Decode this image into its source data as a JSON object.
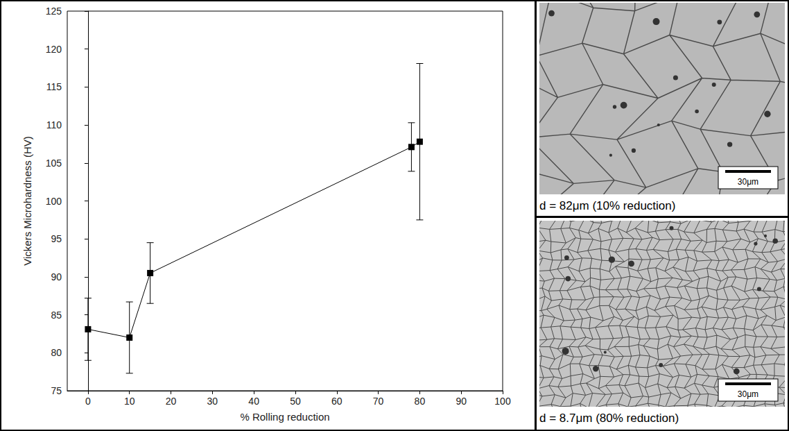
{
  "chart_data": {
    "type": "line",
    "x": [
      0,
      10,
      15,
      78,
      80
    ],
    "values": [
      83.1,
      82.0,
      90.5,
      107.1,
      107.8
    ],
    "errors": [
      4.1,
      4.7,
      4.0,
      3.2,
      10.3
    ],
    "color": "#000000",
    "marker": "square",
    "xlabel": "% Rolling reduction",
    "ylabel": "Vickers Microhardness (HV)",
    "xlim": [
      -5,
      100
    ],
    "xticks": [
      0,
      10,
      20,
      30,
      40,
      50,
      60,
      70,
      80,
      90,
      100
    ],
    "ylim": [
      75,
      125
    ],
    "yticks": [
      75,
      80,
      85,
      90,
      95,
      100,
      105,
      110,
      115,
      120,
      125
    ],
    "grid": false
  },
  "micrographs": [
    {
      "caption": "d = 82μm (10% reduction)",
      "scale_bar": "30μm"
    },
    {
      "caption": "d = 8.7μm (80% reduction)",
      "scale_bar": "30μm"
    }
  ]
}
